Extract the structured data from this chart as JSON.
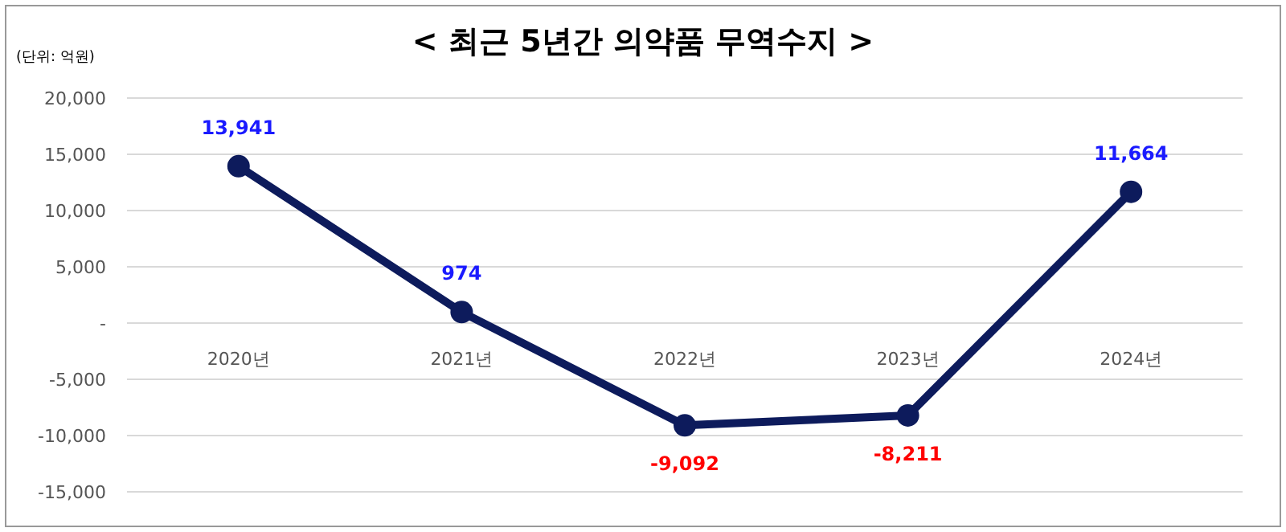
{
  "chart_data": {
    "type": "line",
    "title": "< 최근 5년간 의약품 무역수지 >",
    "annotations": [
      "(단위: 억원)"
    ],
    "categories": [
      "2020년",
      "2021년",
      "2022년",
      "2023년",
      "2024년"
    ],
    "series": [
      {
        "color": "#0d1b5c",
        "values": [
          13941,
          974,
          -9092,
          -8211,
          11664
        ],
        "value_labels": [
          "13,941",
          "974",
          "-9,092",
          "-8,211",
          "11,664"
        ]
      }
    ],
    "ylim": [
      -15000,
      20000
    ],
    "yticks": [
      {
        "value": -15000,
        "label": "-15,000"
      },
      {
        "value": -10000,
        "label": "-10,000"
      },
      {
        "value": -5000,
        "label": "-5,000"
      },
      {
        "value": 0,
        "label": "-"
      },
      {
        "value": 5000,
        "label": "5,000"
      },
      {
        "value": 10000,
        "label": "10,000"
      },
      {
        "value": 15000,
        "label": "15,000"
      },
      {
        "value": 20000,
        "label": "20,000"
      }
    ],
    "grid": "y",
    "marker": "circle",
    "line_style": "solid"
  }
}
